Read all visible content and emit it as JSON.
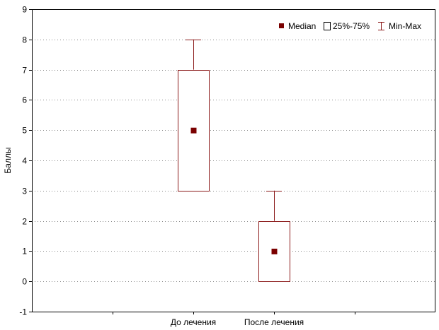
{
  "chart_data": {
    "type": "boxplot",
    "ylabel": "Баллы",
    "ylim": [
      -1,
      9
    ],
    "yticks": [
      -1,
      0,
      1,
      2,
      3,
      4,
      5,
      6,
      7,
      8,
      9
    ],
    "grid": true,
    "legend_position": "top-right",
    "legend": {
      "median": "Median",
      "box": "25%-75%",
      "whisker": "Min-Max"
    },
    "categories": [
      "До лечения",
      "После лечения"
    ],
    "boxes": [
      {
        "category": "До лечения",
        "min": 3,
        "q1": 3,
        "median": 5,
        "q3": 7,
        "max": 8
      },
      {
        "category": "После лечения",
        "min": 0,
        "q1": 0,
        "median": 1,
        "q3": 2,
        "max": 3
      }
    ],
    "colors": {
      "box": "#8b1a1a",
      "median": "#7a0000",
      "grid": "#8a8a8a",
      "axis": "#000000"
    }
  }
}
